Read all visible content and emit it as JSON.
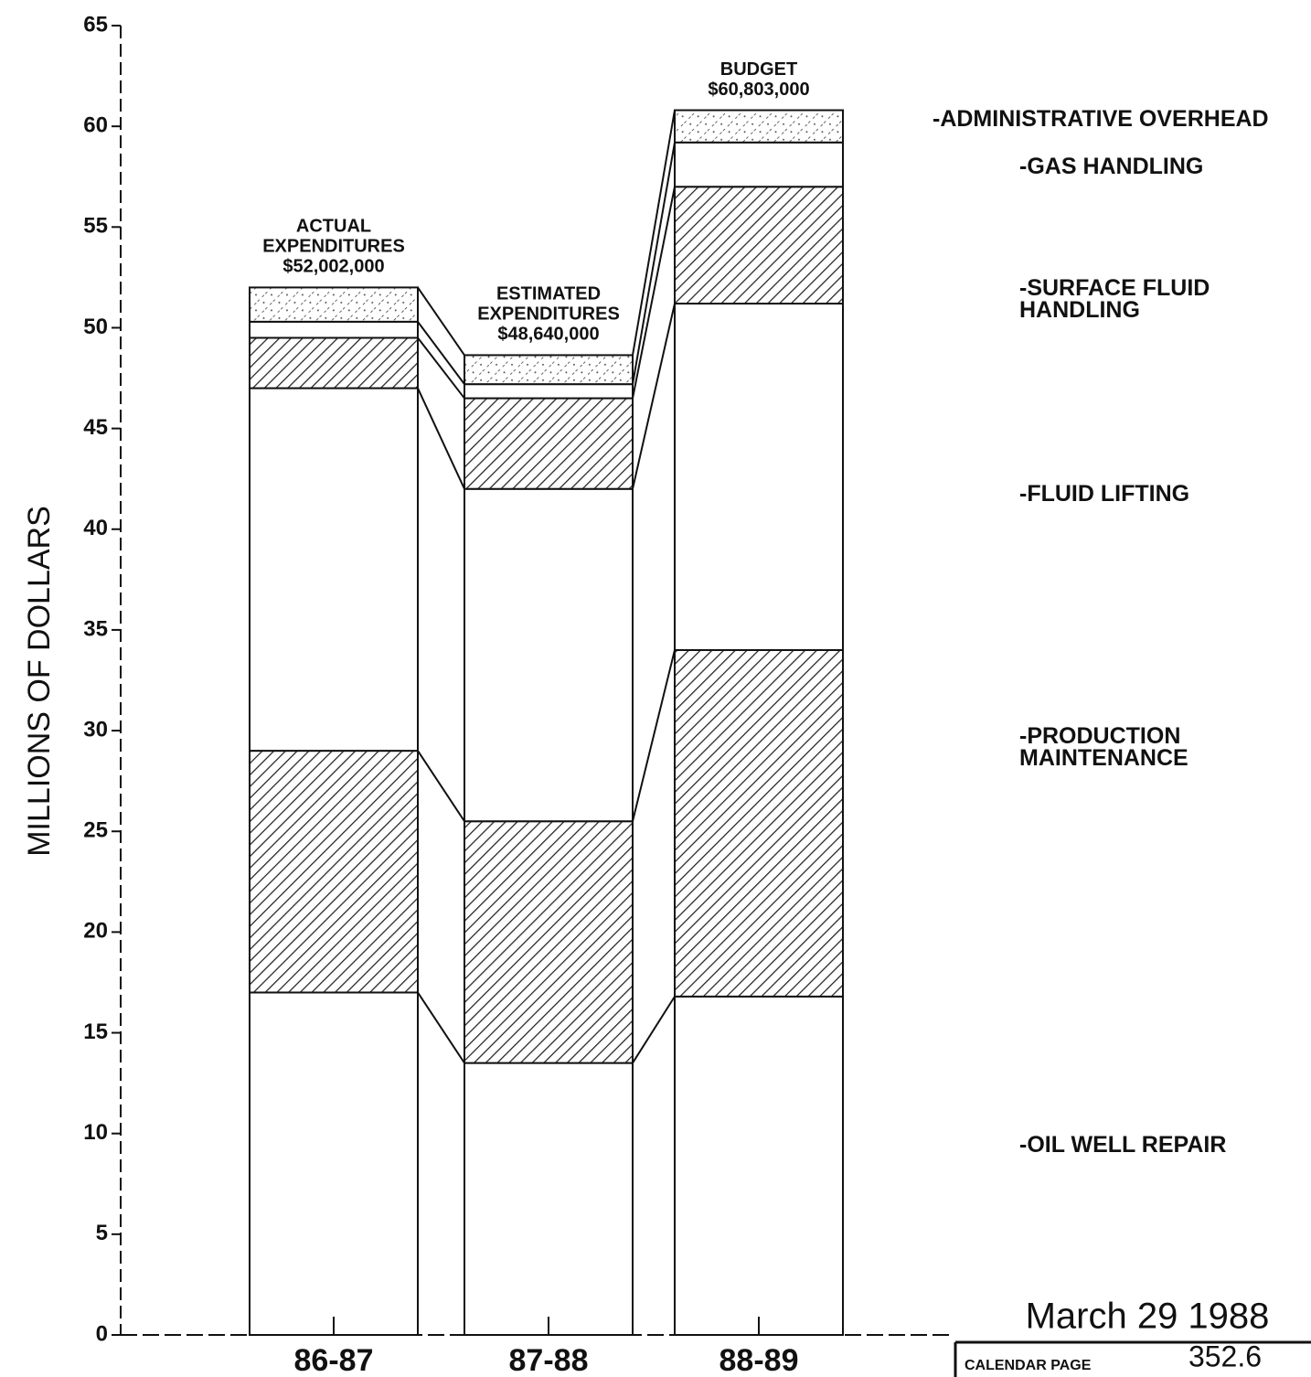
{
  "chart_data": {
    "type": "stacked-bar",
    "y_axis_label": "MILLIONS OF DOLLARS",
    "categories": [
      "86-87",
      "87-88",
      "88-89"
    ],
    "ylim": [
      0,
      65
    ],
    "yticks": [
      0,
      5,
      10,
      15,
      20,
      25,
      30,
      35,
      40,
      45,
      50,
      55,
      60,
      65
    ],
    "series": [
      {
        "name": "-OIL WELL REPAIR",
        "fill": "none",
        "values": [
          17,
          13.5,
          16.8
        ]
      },
      {
        "name": "-PRODUCTION MAINTENANCE",
        "fill": "hatch",
        "values": [
          12,
          12,
          17.2
        ]
      },
      {
        "name": "-FLUID LIFTING",
        "fill": "none",
        "values": [
          18,
          16.5,
          17.2
        ]
      },
      {
        "name": "-SURFACE FLUID HANDLING",
        "fill": "hatch",
        "values": [
          2.5,
          4.5,
          5.8
        ]
      },
      {
        "name": "-GAS HANDLING",
        "fill": "none",
        "values": [
          0.8,
          0.7,
          2.2
        ]
      },
      {
        "name": "-ADMINISTRATIVE OVERHEAD",
        "fill": "stipple",
        "values": [
          1.7,
          1.44,
          1.6
        ]
      }
    ],
    "bar_annotations": [
      [
        "ACTUAL",
        "EXPENDITURES",
        "$52,002,000"
      ],
      [
        "ESTIMATED",
        "EXPENDITURES",
        "$48,640,000"
      ],
      [
        "BUDGET",
        "$60,803,000"
      ]
    ],
    "date_stamp": "March 29 1988",
    "calendar_label": "CALENDAR PAGE",
    "calendar_page": "352.6"
  }
}
